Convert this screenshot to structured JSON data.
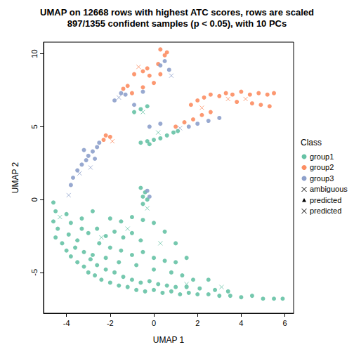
{
  "chart_data": {
    "type": "scatter",
    "title": "UMAP on 12668 rows with highest ATC scores, rows are scaled\n897/1355 confident samples (p < 0.05), with 10 PCs",
    "x_label": "UMAP 1",
    "y_label": "UMAP 2",
    "xlim": [
      -5.05,
      6.4
    ],
    "ylim": [
      -7.8,
      10.8
    ],
    "xticks": [
      -4,
      -2,
      0,
      2,
      4,
      6
    ],
    "yticks": [
      -5,
      0,
      5,
      10
    ],
    "grid": false,
    "legend": "right",
    "legend_title": "Class",
    "series": [
      {
        "name": "group1",
        "color": "#66C2A5",
        "marker": "circle",
        "values": [
          [
            -4.6,
            -0.2
          ],
          [
            -4.5,
            -0.8
          ],
          [
            -4.6,
            -1.5
          ],
          [
            -4.4,
            -2.0
          ],
          [
            -4.5,
            -2.6
          ],
          [
            -4.2,
            -3.0
          ],
          [
            -4.0,
            -3.5
          ],
          [
            -3.8,
            -3.9
          ],
          [
            -3.5,
            -4.3
          ],
          [
            -3.2,
            -4.6
          ],
          [
            -3.0,
            -5.0
          ],
          [
            -2.7,
            -5.2
          ],
          [
            -2.4,
            -5.5
          ],
          [
            -2.0,
            -5.7
          ],
          [
            -1.6,
            -5.9
          ],
          [
            -1.2,
            -6.0
          ],
          [
            -0.8,
            -6.2
          ],
          [
            -0.4,
            -6.3
          ],
          [
            0,
            -6.2
          ],
          [
            0.4,
            -6.4
          ],
          [
            0.8,
            -6.3
          ],
          [
            1.2,
            -6.5
          ],
          [
            1.6,
            -6.4
          ],
          [
            2.0,
            -6.5
          ],
          [
            2.5,
            -6.5
          ],
          [
            3.0,
            -6.6
          ],
          [
            3.5,
            -6.6
          ],
          [
            4.0,
            -6.7
          ],
          [
            4.5,
            -6.6
          ],
          [
            5.0,
            -6.8
          ],
          [
            5.5,
            -6.8
          ],
          [
            5.9,
            -6.8
          ],
          [
            -4.0,
            -1.0
          ],
          [
            -3.8,
            -1.6
          ],
          [
            -3.9,
            -2.4
          ],
          [
            -3.5,
            -2.8
          ],
          [
            -3.6,
            -3.3
          ],
          [
            -3.2,
            -3.6
          ],
          [
            -2.9,
            -4.1
          ],
          [
            -2.6,
            -4.5
          ],
          [
            -2.2,
            -4.8
          ],
          [
            -1.8,
            -5.0
          ],
          [
            -1.4,
            -5.3
          ],
          [
            -1.0,
            -5.5
          ],
          [
            -0.6,
            -5.7
          ],
          [
            -0.2,
            -5.6
          ],
          [
            0.2,
            -5.8
          ],
          [
            0.6,
            -5.9
          ],
          [
            1.0,
            -6.0
          ],
          [
            1.5,
            -6.0
          ],
          [
            2.1,
            -6.1
          ],
          [
            2.8,
            -6.2
          ],
          [
            3.4,
            -6.3
          ],
          [
            -3.3,
            -2.0
          ],
          [
            -3.0,
            -2.3
          ],
          [
            -2.6,
            -2.0
          ],
          [
            -2.2,
            -2.5
          ],
          [
            -1.8,
            -2.2
          ],
          [
            -1.4,
            -2.6
          ],
          [
            -1.0,
            -2.3
          ],
          [
            -0.6,
            -2.8
          ],
          [
            -2.5,
            -3.0
          ],
          [
            -2.0,
            -3.3
          ],
          [
            -1.5,
            -3.5
          ],
          [
            -1.0,
            -3.8
          ],
          [
            -0.5,
            -3.6
          ],
          [
            0,
            -4.0
          ],
          [
            0.5,
            -4.2
          ],
          [
            1.0,
            -4.3
          ],
          [
            1.5,
            -4.0
          ],
          [
            -2.8,
            -3.8
          ],
          [
            -2.2,
            -4.0
          ],
          [
            -1.6,
            -4.3
          ],
          [
            -0.8,
            -4.5
          ],
          [
            0,
            -4.8
          ],
          [
            0.8,
            -5.0
          ],
          [
            1.3,
            -5.2
          ],
          [
            1.8,
            -5.5
          ],
          [
            2.5,
            -5.5
          ],
          [
            -1.5,
            -1.5
          ],
          [
            -1.0,
            -1.2
          ],
          [
            -0.5,
            -1.4
          ],
          [
            0,
            -1.6
          ],
          [
            0.5,
            -2.2
          ],
          [
            1.0,
            -3.0
          ],
          [
            -2.0,
            -1.3
          ],
          [
            -0.6,
            0.8
          ],
          [
            -0.4,
            0.5
          ],
          [
            -0.5,
            0.2
          ],
          [
            -0.3,
            0.0
          ],
          [
            -0.5,
            -0.3
          ],
          [
            -0.6,
            3.9
          ],
          [
            -0.3,
            4.0
          ],
          [
            0,
            4.1
          ],
          [
            0.3,
            4.2
          ],
          [
            0.6,
            4.4
          ],
          [
            0.9,
            4.6
          ],
          [
            1.1,
            4.7
          ],
          [
            -0.2,
            3.8
          ],
          [
            -0.6,
            6.2
          ],
          [
            -0.3,
            6.4
          ],
          [
            -0.9,
            6.0
          ],
          [
            -2.8,
            -0.8
          ],
          [
            -3.3,
            -1.3
          ]
        ]
      },
      {
        "name": "group2",
        "color": "#FC8D62",
        "marker": "circle",
        "values": [
          [
            0.3,
            10.3
          ],
          [
            0.6,
            10.1
          ],
          [
            0.5,
            9.9
          ],
          [
            0.2,
            9.3
          ],
          [
            -0.3,
            9.0
          ],
          [
            -0.5,
            8.8
          ],
          [
            -0.9,
            8.6
          ],
          [
            -0.2,
            8.5
          ],
          [
            -1.2,
            7.8
          ],
          [
            -1.4,
            7.6
          ],
          [
            -1.0,
            7.3
          ],
          [
            -0.5,
            7.7
          ],
          [
            0,
            8.0
          ],
          [
            0.3,
            8.6
          ],
          [
            1.7,
            6.5
          ],
          [
            2.0,
            6.8
          ],
          [
            2.3,
            7.0
          ],
          [
            2.6,
            7.2
          ],
          [
            3.0,
            7.1
          ],
          [
            3.3,
            7.3
          ],
          [
            3.6,
            7.2
          ],
          [
            4.0,
            7.4
          ],
          [
            4.4,
            7.2
          ],
          [
            4.8,
            7.3
          ],
          [
            5.2,
            7.2
          ],
          [
            5.5,
            7.3
          ],
          [
            4.5,
            6.6
          ],
          [
            4.9,
            6.5
          ],
          [
            5.3,
            6.4
          ],
          [
            3.8,
            6.7
          ],
          [
            1.0,
            5.0
          ],
          [
            1.4,
            5.3
          ],
          [
            1.8,
            5.5
          ],
          [
            2.2,
            5.8
          ],
          [
            2.6,
            6.0
          ],
          [
            -2.3,
            4.1
          ],
          [
            -2.0,
            4.3
          ],
          [
            -2.2,
            4.4
          ]
        ]
      },
      {
        "name": "group3",
        "color": "#8DA0CB",
        "marker": "circle",
        "values": [
          [
            -3.8,
            1.0
          ],
          [
            -3.7,
            1.5
          ],
          [
            -3.5,
            2.0
          ],
          [
            -3.3,
            2.4
          ],
          [
            -3.1,
            2.7
          ],
          [
            -3.0,
            3.0
          ],
          [
            -2.8,
            3.3
          ],
          [
            -2.6,
            3.6
          ],
          [
            -2.5,
            3.9
          ],
          [
            -2.7,
            2.8
          ],
          [
            -3.2,
            3.4
          ],
          [
            -1.8,
            6.8
          ],
          [
            -1.5,
            7.3
          ],
          [
            -1.3,
            7.2
          ],
          [
            -0.9,
            6.5
          ],
          [
            -0.5,
            7.4
          ],
          [
            0.3,
            9.2
          ],
          [
            0.5,
            9.5
          ],
          [
            0.7,
            8.9
          ],
          [
            -0.2,
            5.0
          ],
          [
            0.3,
            5.2
          ],
          [
            1.6,
            5.0
          ],
          [
            2.0,
            5.2
          ],
          [
            2.5,
            5.4
          ],
          [
            3.0,
            5.6
          ],
          [
            -0.3,
            0.6
          ],
          [
            -0.2,
            0.2
          ]
        ]
      },
      {
        "name": "ambiguous",
        "color": "#000000",
        "marker": "cross",
        "values": [
          [
            -3.9,
            0.3
          ],
          [
            -3.4,
            1.8
          ],
          [
            -2.9,
            2.2
          ],
          [
            -1.6,
            7.0
          ],
          [
            -0.7,
            9.1
          ],
          [
            0.8,
            8.5
          ],
          [
            2.2,
            6.3
          ],
          [
            3.4,
            6.9
          ],
          [
            4.2,
            6.9
          ],
          [
            1.2,
            4.9
          ],
          [
            -0.3,
            -0.6
          ],
          [
            -1.2,
            -2.0
          ],
          [
            0.3,
            -3.0
          ],
          [
            -2.4,
            -2.6
          ],
          [
            1.5,
            -5.8
          ],
          [
            -0.5,
            6.0
          ],
          [
            0.2,
            4.6
          ],
          [
            3.1,
            -6.0
          ],
          [
            -4.3,
            -1.2
          ],
          [
            -1.9,
            4.0
          ]
        ],
        "colors": [
          "#8DA0CB",
          "#8DA0CB",
          "#8DA0CB",
          "#8DA0CB",
          "#FC8D62",
          "#8DA0CB",
          "#FC8D62",
          "#FC8D62",
          "#FC8D62",
          "#8DA0CB",
          "#66C2A5",
          "#66C2A5",
          "#66C2A5",
          "#66C2A5",
          "#66C2A5",
          "#66C2A5",
          "#66C2A5",
          "#66C2A5",
          "#66C2A5",
          "#FC8D62"
        ]
      },
      {
        "name": "predicted",
        "color": "#000000",
        "marker": "triangle",
        "values": []
      },
      {
        "name": "predicted",
        "color": "#000000",
        "marker": "cross",
        "values": []
      }
    ]
  }
}
